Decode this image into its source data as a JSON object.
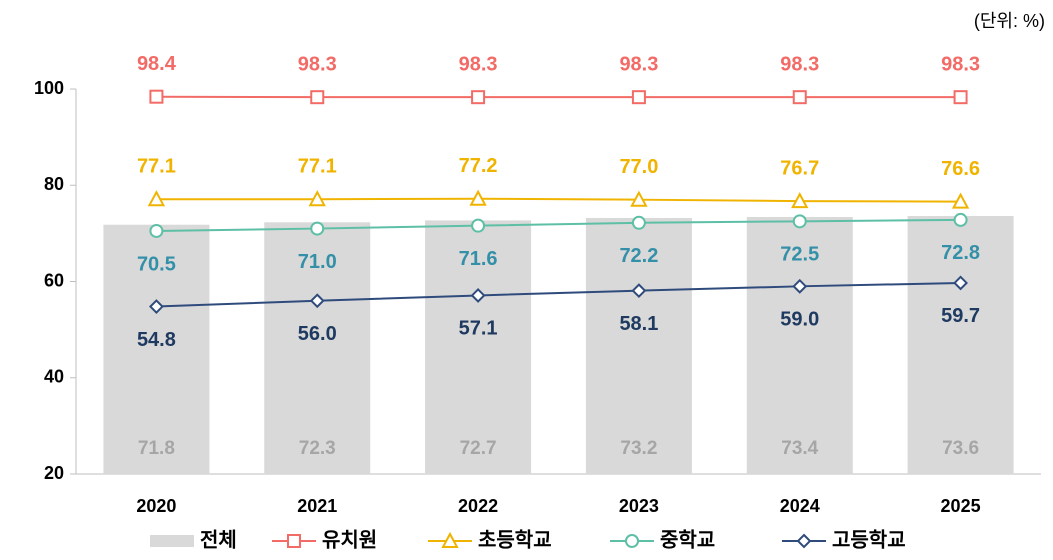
{
  "chart_data": {
    "type": "combo",
    "unit_label": "(단위: %)",
    "categories": [
      "2020",
      "2021",
      "2022",
      "2023",
      "2024",
      "2025"
    ],
    "ylim": [
      20,
      100
    ],
    "yticks": [
      20,
      40,
      60,
      80,
      100
    ],
    "series": [
      {
        "name": "전체",
        "type": "bar",
        "color": "#d9d9d9",
        "label_color": "#a6a6a6",
        "values": [
          71.8,
          72.3,
          72.7,
          73.2,
          73.4,
          73.6
        ]
      },
      {
        "name": "유치원",
        "type": "line",
        "marker": "square",
        "color": "#f26b66",
        "label_color": "#f26b66",
        "values": [
          98.4,
          98.3,
          98.3,
          98.3,
          98.3,
          98.3
        ]
      },
      {
        "name": "초등학교",
        "type": "line",
        "marker": "triangle",
        "color": "#f0b400",
        "label_color": "#f0b400",
        "values": [
          77.1,
          77.1,
          77.2,
          77.0,
          76.7,
          76.6
        ],
        "value_labels": [
          "77.1",
          "77.1",
          "77.2",
          "77.0",
          "76.7",
          "76.6"
        ]
      },
      {
        "name": "중학교",
        "type": "line",
        "marker": "circle",
        "color": "#5dbfa5",
        "label_color": "#3390a8",
        "values": [
          70.5,
          71.0,
          71.6,
          72.2,
          72.5,
          72.8
        ],
        "value_labels": [
          "70.5",
          "71.0",
          "71.6",
          "72.2",
          "72.5",
          "72.8"
        ]
      },
      {
        "name": "고등학교",
        "type": "line",
        "marker": "diamond",
        "color": "#2e4b7c",
        "label_color": "#1f3a60",
        "values": [
          54.8,
          56.0,
          57.1,
          58.1,
          59.0,
          59.7
        ],
        "value_labels": [
          "54.8",
          "56.0",
          "57.1",
          "58.1",
          "59.0",
          "59.7"
        ]
      }
    ]
  }
}
